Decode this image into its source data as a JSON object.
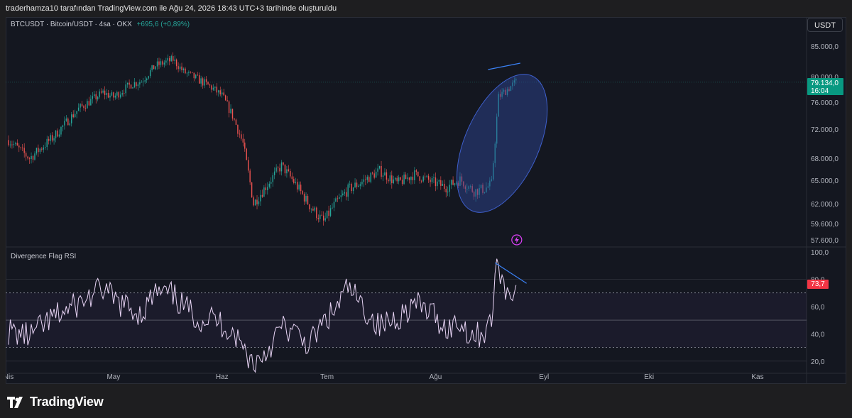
{
  "header": {
    "text": "traderhamza10 tarafından TradingView.com ile Ağu 24, 2026 18:43 UTC+3 tarihinde oluşturuldu"
  },
  "toolbar": {
    "currency_button": "USDT"
  },
  "legend": {
    "symbol": "BTCUSDT · Bitcoin/USDT · 4sa · OKX",
    "change": "+695,6 (+0,89%)"
  },
  "price_tag": {
    "price": "79.134,0",
    "countdown": "16:04"
  },
  "rsi_panel": {
    "title": "Divergence Flag RSI",
    "value_tag": "73,7"
  },
  "brand": {
    "name": "TradingView"
  },
  "icons": [
    "tradingview-logo-icon",
    "lightning-icon"
  ],
  "colors": {
    "background": "#141720",
    "up": "#26a69a",
    "down": "#ef5350",
    "rsi_line": "#e8d4f5",
    "highlight_ellipse": "#2e4a9e",
    "trendline": "#3b82f6",
    "price_tag": "#089981",
    "rsi_tag": "#f23645"
  },
  "chart_data": [
    {
      "type": "candlestick",
      "y_ticks": [
        "85.000,0",
        "80.000,0",
        "76.000,0",
        "72.000,0",
        "68.000,0",
        "65.000,0",
        "62.000,0",
        "59.600,0",
        "57.600,0"
      ],
      "x_ticks": [
        "Nis",
        "May",
        "Haz",
        "Tem",
        "Ağu",
        "Eyl",
        "Eki",
        "Kas"
      ],
      "ylim": [
        57600,
        87000
      ],
      "x_range": [
        "2026-04-01",
        "2026-11-15"
      ],
      "last_price": 79134,
      "series": [
        {
          "x": [
            "2026-04-01",
            "2026-04-07",
            "2026-04-14",
            "2026-04-21",
            "2026-04-28",
            "2026-05-01",
            "2026-05-06",
            "2026-05-09",
            "2026-05-13",
            "2026-05-18",
            "2026-05-21",
            "2026-05-26",
            "2026-05-29",
            "2026-06-01",
            "2026-06-04",
            "2026-06-07",
            "2026-06-10",
            "2026-06-14",
            "2026-06-18",
            "2026-06-22",
            "2026-06-26",
            "2026-06-30",
            "2026-07-03",
            "2026-07-07",
            "2026-07-11",
            "2026-07-16",
            "2026-07-21",
            "2026-07-26",
            "2026-07-31",
            "2026-08-04",
            "2026-08-08",
            "2026-08-12",
            "2026-08-15",
            "2026-08-17",
            "2026-08-18",
            "2026-08-19",
            "2026-08-21",
            "2026-08-24"
          ],
          "y": [
            70500,
            68000,
            71000,
            75000,
            77500,
            76800,
            78800,
            79300,
            81800,
            82800,
            80800,
            79300,
            78300,
            77000,
            74000,
            70000,
            62000,
            64500,
            67000,
            64500,
            61800,
            59800,
            61800,
            63800,
            64800,
            66300,
            64600,
            65800,
            64800,
            64100,
            65100,
            63600,
            63900,
            64500,
            70500,
            76800,
            77800,
            79134
          ]
        }
      ],
      "annotations": [
        "highlight-ellipse",
        "bearish-trendline"
      ]
    },
    {
      "type": "line",
      "title": "Divergence Flag RSI",
      "y_ticks": [
        "100,0",
        "80,0",
        "60,0",
        "40,0",
        "20,0"
      ],
      "ylim": [
        10,
        100
      ],
      "levels": [
        70,
        50,
        30
      ],
      "last_value": 73.7,
      "series": [
        {
          "x": [
            "2026-04-01",
            "2026-04-07",
            "2026-04-14",
            "2026-04-21",
            "2026-04-28",
            "2026-05-01",
            "2026-05-06",
            "2026-05-09",
            "2026-05-13",
            "2026-05-18",
            "2026-05-21",
            "2026-05-26",
            "2026-05-29",
            "2026-06-01",
            "2026-06-04",
            "2026-06-07",
            "2026-06-10",
            "2026-06-14",
            "2026-06-18",
            "2026-06-22",
            "2026-06-26",
            "2026-06-30",
            "2026-07-03",
            "2026-07-07",
            "2026-07-11",
            "2026-07-16",
            "2026-07-21",
            "2026-07-26",
            "2026-07-31",
            "2026-08-04",
            "2026-08-08",
            "2026-08-12",
            "2026-08-15",
            "2026-08-17",
            "2026-08-18",
            "2026-08-19",
            "2026-08-21",
            "2026-08-24"
          ],
          "y": [
            42,
            38,
            52,
            62,
            73,
            65,
            58,
            55,
            70,
            68,
            60,
            50,
            52,
            47,
            42,
            30,
            18,
            28,
            45,
            40,
            32,
            48,
            56,
            74,
            60,
            45,
            52,
            62,
            55,
            44,
            48,
            38,
            42,
            48,
            84,
            92,
            70,
            73.7
          ]
        }
      ],
      "annotations": [
        "bearish-trendline"
      ]
    }
  ]
}
